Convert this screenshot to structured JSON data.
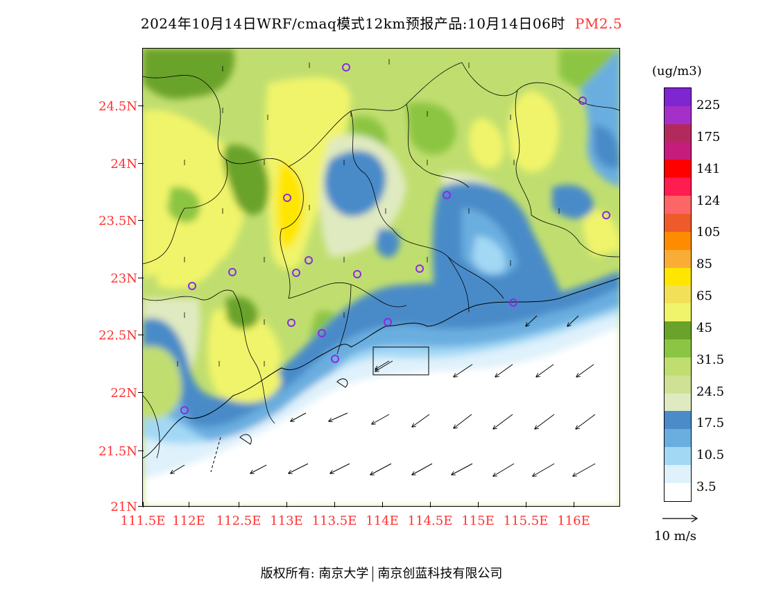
{
  "title": {
    "main": "2024年10月14日WRF/cmaq模式12km预报产品:10月14日06时",
    "species": "PM2.5",
    "species_color": "#ff3030"
  },
  "map": {
    "lat_labels": [
      "24.5N",
      "24N",
      "23.5N",
      "23N",
      "22.5N",
      "22N",
      "21.5N",
      "21N"
    ],
    "lon_labels": [
      "111.5E",
      "112E",
      "112.5E",
      "113E",
      "113.5E",
      "114E",
      "114.5E",
      "115E",
      "115.5E",
      "116E"
    ],
    "label_color": "#ff3030",
    "station_marker": "purple-circle-marker",
    "wind_marker": "wind-vector-arrow"
  },
  "legend": {
    "unit": "(ug/m3)",
    "colors": [
      "#7e26cf",
      "#a430c9",
      "#b22a5c",
      "#c61c7c",
      "#ff0000",
      "#ff1c50",
      "#fc6666",
      "#ee5a2a",
      "#ff8c00",
      "#f9ad36",
      "#ffe600",
      "#f2e158",
      "#f0f46a",
      "#6aa32a",
      "#8cc543",
      "#c0de6f",
      "#cfe195",
      "#e0eac0",
      "#4a8bc8",
      "#6aaee0",
      "#a3d8f5",
      "#dff1fb",
      "#ffffff"
    ],
    "labels": [
      "225",
      "175",
      "141",
      "124",
      "105",
      "85",
      "65",
      "45",
      "31.5",
      "24.5",
      "17.5",
      "10.5",
      "3.5"
    ]
  },
  "wind_key": {
    "label": "10 m/s"
  },
  "footer": {
    "left": "版权所有: 南京大学",
    "right": "南京创蓝科技有限公司"
  }
}
